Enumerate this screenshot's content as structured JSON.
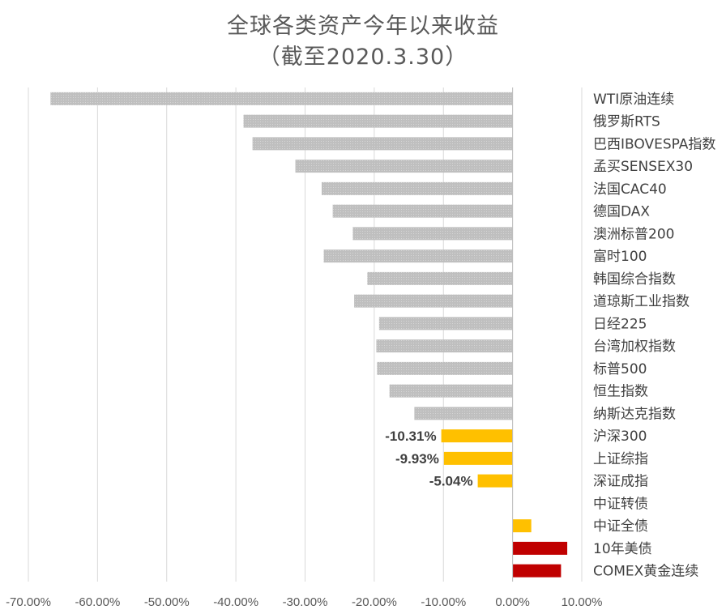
{
  "chart_data": {
    "type": "bar",
    "orientation": "horizontal",
    "title": "全球各类资产今年以来收益",
    "subtitle": "（截至2020.3.30）",
    "xlim": [
      -70,
      10
    ],
    "x_ticks": [
      "-70.00%",
      "-60.00%",
      "-50.00%",
      "-40.00%",
      "-30.00%",
      "-20.00%",
      "-10.00%",
      "0.00%",
      "10.00%"
    ],
    "grid": true,
    "colors": {
      "equity": "#bfbfbf",
      "china": "#ffc000",
      "safe": "#c00000",
      "grid": "#d9d9d9",
      "axis": "#bfbfbf"
    },
    "categories": [
      "WTI原油连续",
      "俄罗斯RTS",
      "巴西IBOVESPA指数",
      "孟买SENSEX30",
      "法国CAC40",
      "德国DAX",
      "澳洲标普200",
      "富时100",
      "韩国综合指数",
      "道琼斯工业指数",
      "日经225",
      "台湾加权指数",
      "标普500",
      "恒生指数",
      "纳斯达克指数",
      "沪深300",
      "上证综指",
      "深证成指",
      "中证转债",
      "中证全债",
      "10年美债",
      "COMEX黄金连续"
    ],
    "values": [
      -66.8,
      -38.9,
      -37.6,
      -31.4,
      -27.6,
      -26.0,
      -23.1,
      -27.3,
      -21.0,
      -22.9,
      -19.3,
      -19.7,
      -19.6,
      -17.8,
      -14.2,
      -10.31,
      -9.93,
      -5.04,
      0.0,
      2.7,
      7.9,
      7.0
    ],
    "bar_color_groups": [
      "equity",
      "equity",
      "equity",
      "equity",
      "equity",
      "equity",
      "equity",
      "equity",
      "equity",
      "equity",
      "equity",
      "equity",
      "equity",
      "equity",
      "equity",
      "china",
      "china",
      "china",
      "china",
      "china",
      "safe",
      "safe"
    ],
    "data_labels": [
      {
        "category": "沪深300",
        "text": "-10.31%"
      },
      {
        "category": "上证综指",
        "text": "-9.93%"
      },
      {
        "category": "深证成指",
        "text": "-5.04%"
      }
    ]
  }
}
